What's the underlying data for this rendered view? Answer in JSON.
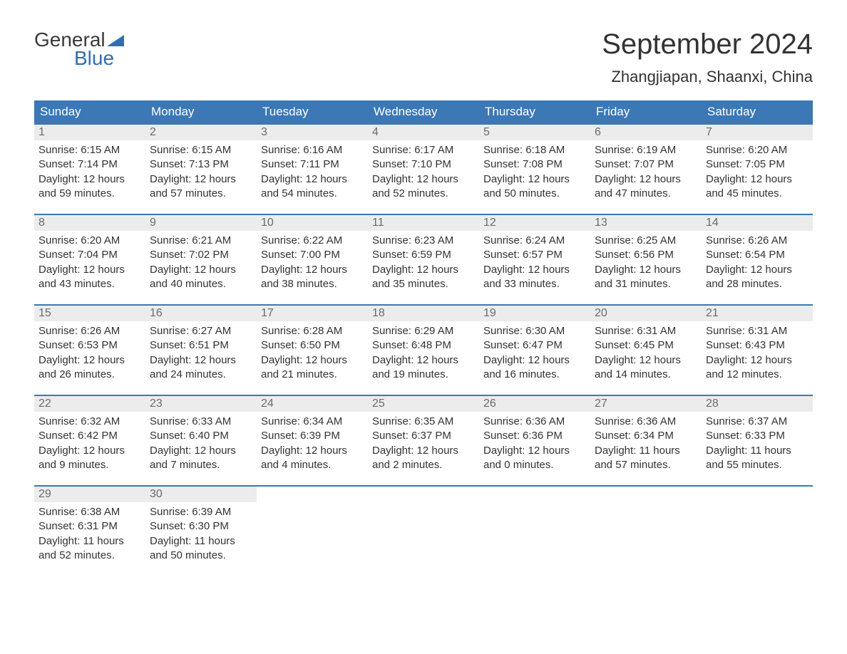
{
  "logo": {
    "word1": "General",
    "word2": "Blue",
    "flag_color": "#2f6fb0",
    "text_color_top": "#3a3a3a",
    "text_color_bottom": "#2f6fb0"
  },
  "title": "September 2024",
  "location": "Zhangjiapan, Shaanxi, China",
  "colors": {
    "header_bg": "#3b78b5",
    "header_text": "#ffffff",
    "daynum_bg": "#ececec",
    "daynum_text": "#6b6b6b",
    "row_border": "#3b78b5",
    "body_text": "#333333",
    "page_bg": "#ffffff"
  },
  "fonts": {
    "title_size": 40,
    "location_size": 22,
    "header_size": 17,
    "cell_size": 15
  },
  "day_labels": [
    "Sunday",
    "Monday",
    "Tuesday",
    "Wednesday",
    "Thursday",
    "Friday",
    "Saturday"
  ],
  "weeks": [
    [
      {
        "n": "1",
        "sr": "6:15 AM",
        "ss": "7:14 PM",
        "dl": "12 hours and 59 minutes."
      },
      {
        "n": "2",
        "sr": "6:15 AM",
        "ss": "7:13 PM",
        "dl": "12 hours and 57 minutes."
      },
      {
        "n": "3",
        "sr": "6:16 AM",
        "ss": "7:11 PM",
        "dl": "12 hours and 54 minutes."
      },
      {
        "n": "4",
        "sr": "6:17 AM",
        "ss": "7:10 PM",
        "dl": "12 hours and 52 minutes."
      },
      {
        "n": "5",
        "sr": "6:18 AM",
        "ss": "7:08 PM",
        "dl": "12 hours and 50 minutes."
      },
      {
        "n": "6",
        "sr": "6:19 AM",
        "ss": "7:07 PM",
        "dl": "12 hours and 47 minutes."
      },
      {
        "n": "7",
        "sr": "6:20 AM",
        "ss": "7:05 PM",
        "dl": "12 hours and 45 minutes."
      }
    ],
    [
      {
        "n": "8",
        "sr": "6:20 AM",
        "ss": "7:04 PM",
        "dl": "12 hours and 43 minutes."
      },
      {
        "n": "9",
        "sr": "6:21 AM",
        "ss": "7:02 PM",
        "dl": "12 hours and 40 minutes."
      },
      {
        "n": "10",
        "sr": "6:22 AM",
        "ss": "7:00 PM",
        "dl": "12 hours and 38 minutes."
      },
      {
        "n": "11",
        "sr": "6:23 AM",
        "ss": "6:59 PM",
        "dl": "12 hours and 35 minutes."
      },
      {
        "n": "12",
        "sr": "6:24 AM",
        "ss": "6:57 PM",
        "dl": "12 hours and 33 minutes."
      },
      {
        "n": "13",
        "sr": "6:25 AM",
        "ss": "6:56 PM",
        "dl": "12 hours and 31 minutes."
      },
      {
        "n": "14",
        "sr": "6:26 AM",
        "ss": "6:54 PM",
        "dl": "12 hours and 28 minutes."
      }
    ],
    [
      {
        "n": "15",
        "sr": "6:26 AM",
        "ss": "6:53 PM",
        "dl": "12 hours and 26 minutes."
      },
      {
        "n": "16",
        "sr": "6:27 AM",
        "ss": "6:51 PM",
        "dl": "12 hours and 24 minutes."
      },
      {
        "n": "17",
        "sr": "6:28 AM",
        "ss": "6:50 PM",
        "dl": "12 hours and 21 minutes."
      },
      {
        "n": "18",
        "sr": "6:29 AM",
        "ss": "6:48 PM",
        "dl": "12 hours and 19 minutes."
      },
      {
        "n": "19",
        "sr": "6:30 AM",
        "ss": "6:47 PM",
        "dl": "12 hours and 16 minutes."
      },
      {
        "n": "20",
        "sr": "6:31 AM",
        "ss": "6:45 PM",
        "dl": "12 hours and 14 minutes."
      },
      {
        "n": "21",
        "sr": "6:31 AM",
        "ss": "6:43 PM",
        "dl": "12 hours and 12 minutes."
      }
    ],
    [
      {
        "n": "22",
        "sr": "6:32 AM",
        "ss": "6:42 PM",
        "dl": "12 hours and 9 minutes."
      },
      {
        "n": "23",
        "sr": "6:33 AM",
        "ss": "6:40 PM",
        "dl": "12 hours and 7 minutes."
      },
      {
        "n": "24",
        "sr": "6:34 AM",
        "ss": "6:39 PM",
        "dl": "12 hours and 4 minutes."
      },
      {
        "n": "25",
        "sr": "6:35 AM",
        "ss": "6:37 PM",
        "dl": "12 hours and 2 minutes."
      },
      {
        "n": "26",
        "sr": "6:36 AM",
        "ss": "6:36 PM",
        "dl": "12 hours and 0 minutes."
      },
      {
        "n": "27",
        "sr": "6:36 AM",
        "ss": "6:34 PM",
        "dl": "11 hours and 57 minutes."
      },
      {
        "n": "28",
        "sr": "6:37 AM",
        "ss": "6:33 PM",
        "dl": "11 hours and 55 minutes."
      }
    ],
    [
      {
        "n": "29",
        "sr": "6:38 AM",
        "ss": "6:31 PM",
        "dl": "11 hours and 52 minutes."
      },
      {
        "n": "30",
        "sr": "6:39 AM",
        "ss": "6:30 PM",
        "dl": "11 hours and 50 minutes."
      },
      null,
      null,
      null,
      null,
      null
    ]
  ],
  "labels": {
    "sunrise": "Sunrise: ",
    "sunset": "Sunset: ",
    "daylight": "Daylight: "
  }
}
